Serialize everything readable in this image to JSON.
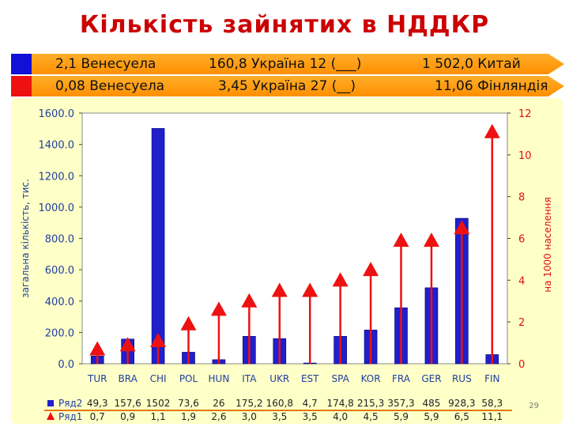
{
  "title": "Кількість зайнятих в НДДКР",
  "bands": [
    {
      "color": "#1010d8",
      "left": "2,1 Венесуела",
      "mid": "160,8 Україна 12 (___)",
      "right": "1 502,0 Китай"
    },
    {
      "color": "#ee1111",
      "left": "0,08 Венесуела",
      "mid": "3,45 Україна 27 (__)",
      "right": "11,06 Фінляндія"
    }
  ],
  "slide_number": "29",
  "chart_data": {
    "type": "bar",
    "categories": [
      "TUR",
      "BRA",
      "CHI",
      "POL",
      "HUN",
      "ITA",
      "UKR",
      "EST",
      "SPA",
      "KOR",
      "FRA",
      "GER",
      "RUS",
      "FIN"
    ],
    "ylabel": "загальна кількість, тис.",
    "y2label": "на 1000 населення",
    "ylim": [
      0,
      1600
    ],
    "y2lim": [
      0,
      12
    ],
    "yticks": [
      "0.0",
      "200.0",
      "400.0",
      "600.0",
      "800.0",
      "1000.0",
      "1200.0",
      "1400.0",
      "1600.0"
    ],
    "y2ticks": [
      "0",
      "2",
      "4",
      "6",
      "8",
      "10",
      "12"
    ],
    "series": [
      {
        "name": "Ряд2",
        "kind": "bar",
        "axis": "left",
        "color": "#1f1fcc",
        "values": [
          49.3,
          157.6,
          1502,
          73.6,
          26,
          175.2,
          160.8,
          4.7,
          174.8,
          215.3,
          357.3,
          485,
          928.3,
          58.3
        ],
        "labels": [
          "49,3",
          "157,6",
          "1502",
          "73,6",
          "26",
          "175,2",
          "160,8",
          "4,7",
          "174,8",
          "215,3",
          "357,3",
          "485",
          "928,3",
          "58,3"
        ]
      },
      {
        "name": "Ряд1",
        "kind": "marker-line",
        "axis": "right",
        "color": "#ee1111",
        "values": [
          0.7,
          0.9,
          1.1,
          1.9,
          2.6,
          3.0,
          3.5,
          3.5,
          4.0,
          4.5,
          5.9,
          5.9,
          6.5,
          11.1
        ],
        "labels": [
          "0,7",
          "0,9",
          "1,1",
          "1,9",
          "2,6",
          "3,0",
          "3,5",
          "3,5",
          "4,0",
          "4,5",
          "5,9",
          "5,9",
          "6,5",
          "11,1"
        ]
      }
    ]
  }
}
